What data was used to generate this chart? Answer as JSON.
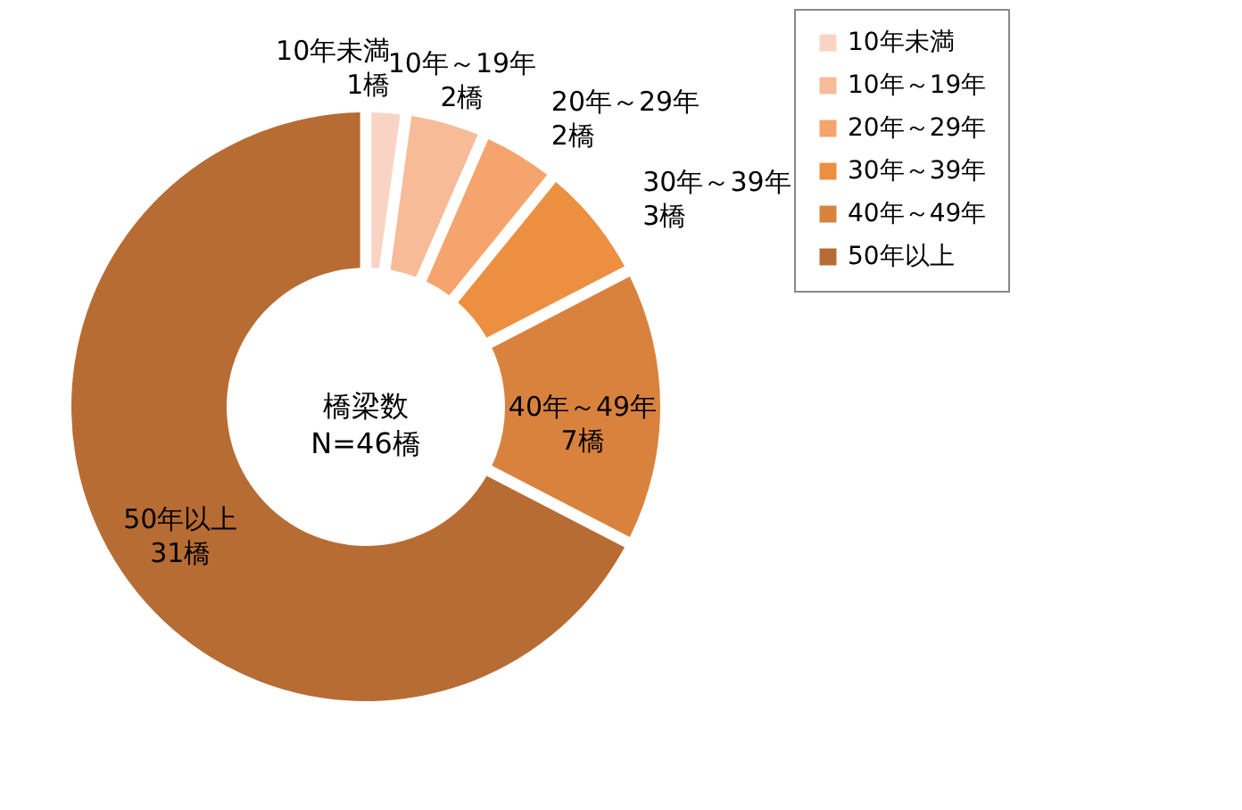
{
  "chart_data": {
    "type": "donut",
    "title": "橋梁数",
    "subtitle": "N=46橋",
    "categories": [
      "10年未満",
      "10年～19年",
      "20年～29年",
      "30年～39年",
      "40年～49年",
      "50年以上"
    ],
    "values": [
      1,
      2,
      2,
      3,
      7,
      31
    ],
    "value_labels": [
      "1橋",
      "2橋",
      "2橋",
      "3橋",
      "7橋",
      "31橋"
    ],
    "colors": [
      "#f9d4c4",
      "#f7bb98",
      "#f4a46c",
      "#ec8f41",
      "#d9823d",
      "#b76c34"
    ],
    "legend": "right"
  }
}
